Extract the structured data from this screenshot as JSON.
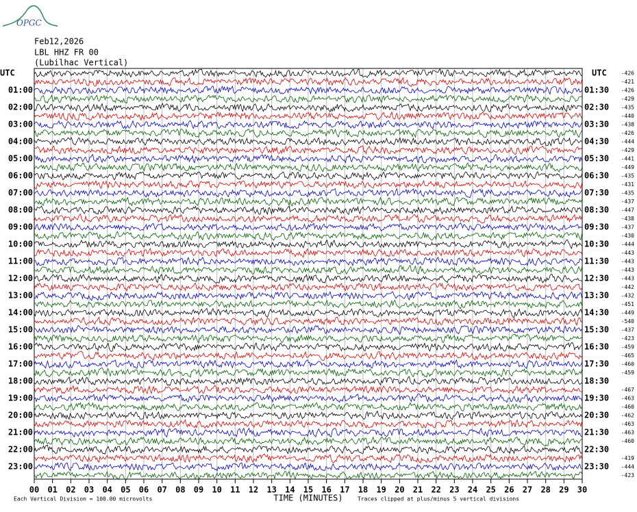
{
  "chart_data": {
    "type": "helicorder",
    "logo": "OPGC",
    "title": "Feb12,2026",
    "subtitle": "LBL HHZ FR 00",
    "station": "(Lubilhac Vertical)",
    "left_labels": [
      "UTC",
      "01:00",
      "02:00",
      "03:00",
      "04:00",
      "05:00",
      "06:00",
      "07:00",
      "08:00",
      "09:00",
      "10:00",
      "11:00",
      "12:00",
      "13:00",
      "14:00",
      "15:00",
      "16:00",
      "17:00",
      "18:00",
      "19:00",
      "20:00",
      "21:00",
      "22:00",
      "23:00"
    ],
    "right_labels": [
      "UTC",
      "01:30",
      "02:30",
      "03:30",
      "04:30",
      "05:30",
      "06:30",
      "07:30",
      "08:30",
      "09:30",
      "10:30",
      "11:30",
      "12:30",
      "13:30",
      "14:30",
      "15:30",
      "16:30",
      "17:30",
      "18:30",
      "19:30",
      "20:30",
      "21:30",
      "22:30",
      "23:30"
    ],
    "offsets": [
      -426,
      -421,
      -426,
      -429,
      -435,
      -440,
      -438,
      -426,
      -444,
      -429,
      -441,
      -449,
      -435,
      -431,
      -435,
      -437,
      -447,
      -438,
      -437,
      -430,
      -444,
      -443,
      -443,
      -443,
      -443,
      -442,
      -432,
      -451,
      -449,
      -540,
      -437,
      -423,
      -459,
      -465,
      -460,
      -459,
      null,
      -467,
      -463,
      -460,
      -462,
      -463,
      -463,
      -460,
      null,
      -419,
      -444,
      -423
    ],
    "trace_colors": [
      "#000000",
      "#e00000",
      "#0000d0",
      "#006000"
    ],
    "xlim": [
      0,
      30
    ],
    "xticks": [
      {
        "value": 0,
        "label": "00"
      },
      {
        "value": 1,
        "label": "01"
      },
      {
        "value": 2,
        "label": "02"
      },
      {
        "value": 3,
        "label": "03"
      },
      {
        "value": 4,
        "label": "04"
      },
      {
        "value": 5,
        "label": "05"
      },
      {
        "value": 6,
        "label": "06"
      },
      {
        "value": 7,
        "label": "07"
      },
      {
        "value": 8,
        "label": "08"
      },
      {
        "value": 9,
        "label": "09"
      },
      10,
      11,
      12,
      13,
      14,
      15,
      16,
      17,
      18,
      19,
      20,
      21,
      22,
      23,
      24,
      25,
      26,
      27,
      28,
      29,
      30
    ],
    "grid": true,
    "xlabel": "TIME (MINUTES)",
    "scale_note": "Each Vertical Division =  100.00 microvolts",
    "clip_note": "Traces clipped at plus/minus 5 vertical divisions"
  }
}
